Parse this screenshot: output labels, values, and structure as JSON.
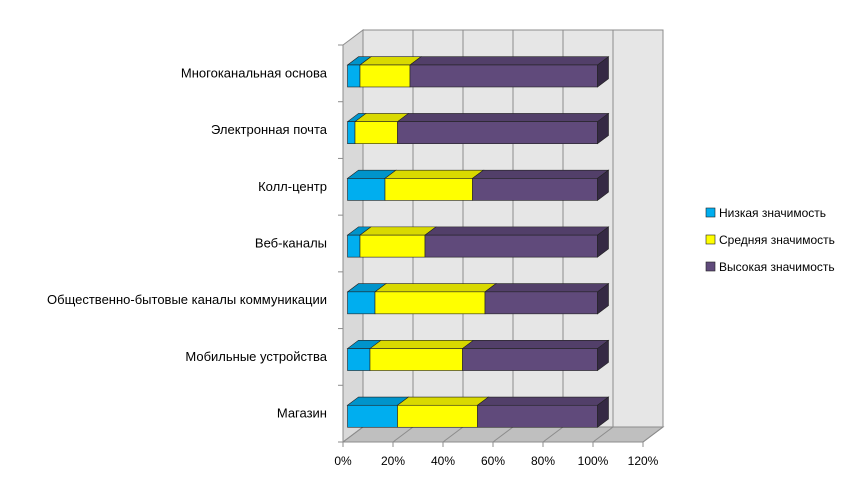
{
  "chart_data": {
    "type": "bar",
    "orientation": "horizontal",
    "stacked": "100%",
    "three_d": true,
    "categories": [
      "Многоканальная основа",
      "Электронная почта",
      "Колл-центр",
      "Веб-каналы",
      "Общественно-бытовые каналы коммуникации",
      "Мобильные устройства",
      "Магазин"
    ],
    "series": [
      {
        "name": "Низкая значимость",
        "color": "#00AEEF",
        "values": [
          5,
          3,
          15,
          5,
          11,
          9,
          20
        ]
      },
      {
        "name": "Средняя значимость",
        "color": "#FFFF00",
        "values": [
          20,
          17,
          35,
          26,
          44,
          37,
          32
        ]
      },
      {
        "name": "Высокая значимость",
        "color": "#604A7B",
        "values": [
          75,
          80,
          50,
          69,
          45,
          54,
          48
        ]
      }
    ],
    "x_ticks": [
      "0%",
      "20%",
      "40%",
      "60%",
      "80%",
      "100%",
      "120%"
    ],
    "xlim": [
      0,
      120
    ],
    "grid": true,
    "legend_position": "right",
    "title": "",
    "xlabel": "",
    "ylabel": ""
  }
}
